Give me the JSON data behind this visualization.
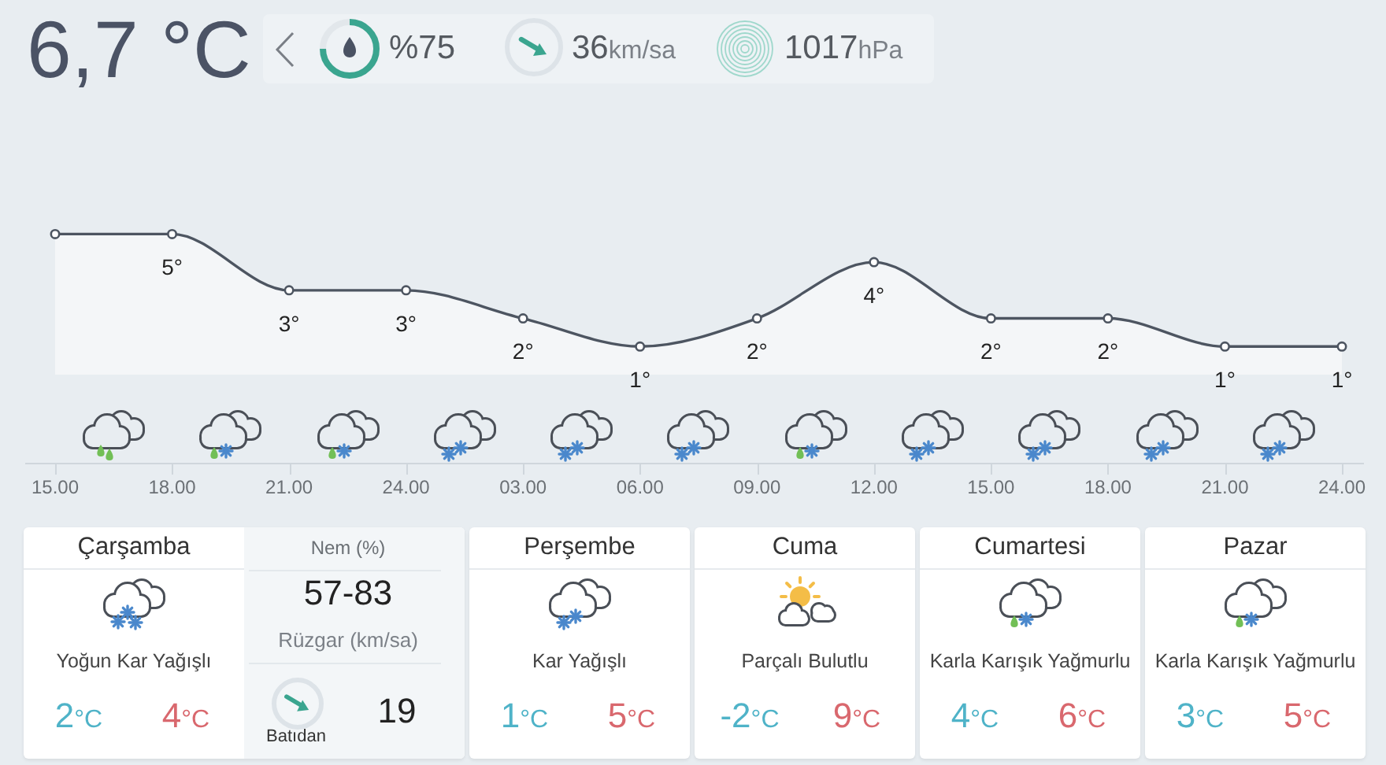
{
  "chart_data": [
    {
      "type": "other",
      "title": "6,7 °C",
      "annotations": [
        "%75",
        "36km/sa",
        "1017hPa"
      ]
    },
    {
      "type": "area",
      "categories": [
        "15.00",
        "18.00",
        "21.00",
        "24.00",
        "03.00",
        "06.00",
        "09.00",
        "12.00",
        "15.00",
        "18.00",
        "21.00",
        "24.00"
      ],
      "values": [
        5,
        5,
        3,
        3,
        2,
        1,
        2,
        4,
        2,
        2,
        1,
        1
      ],
      "value_labels": [
        null,
        "5°",
        "3°",
        "3°",
        "2°",
        "1°",
        "2°",
        "4°",
        "2°",
        "2°",
        "1°",
        "1°"
      ],
      "color": "#4d5561",
      "marker": "circle",
      "tick_labels": "x"
    },
    {
      "type": "other",
      "categories": [
        "Çarşamba",
        "Perşembe",
        "Cuma",
        "Cumartesi",
        "Pazar"
      ],
      "annotations": [
        "Yoğun Kar Yağışlı",
        "Kar Yağışlı",
        "Parçalı Bulutlu",
        "Karla Karışık Yağmurlu",
        "Karla Karışık Yağmurlu",
        "2°C",
        "4°C",
        "1°C",
        "5°C",
        "-2°C",
        "9°C",
        "4°C",
        "6°C",
        "3°C",
        "5°C",
        "Nem (%)",
        "57-83",
        "Rüzgar (km/sa)",
        "19",
        "Batıdan"
      ]
    }
  ]
}
